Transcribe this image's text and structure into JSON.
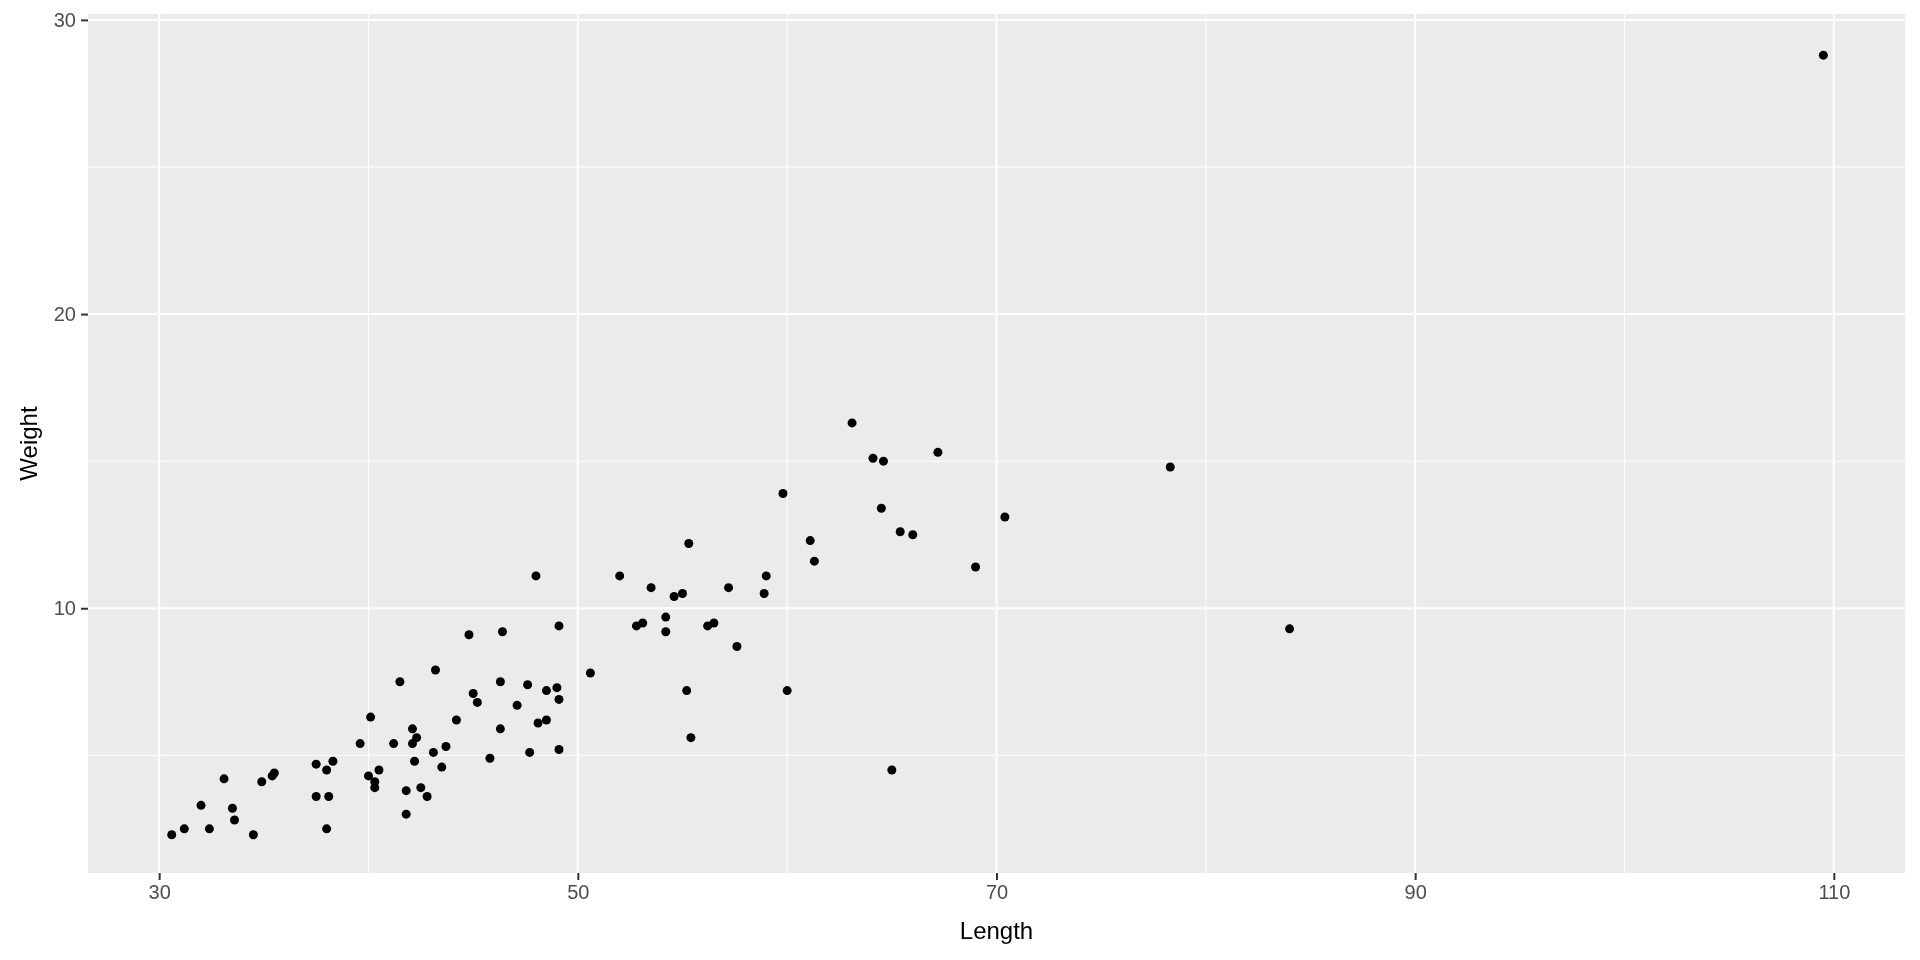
{
  "chart_data": {
    "type": "scatter",
    "xlabel": "Length",
    "ylabel": "Weight",
    "x": [
      48.0,
      49.1,
      44.8,
      46.4,
      43.2,
      41.5,
      50.6,
      46.3,
      47.6,
      48.5,
      49.0,
      45.0,
      45.2,
      49.1,
      47.1,
      40.1,
      44.2,
      42.1,
      46.3,
      48.1,
      48.5,
      42.3,
      42.1,
      39.6,
      41.2,
      43.7,
      43.1,
      47.7,
      49.1,
      45.8,
      42.2,
      43.5,
      40.5,
      40.0,
      40.3,
      40.3,
      41.8,
      42.5,
      42.8,
      41.8,
      37.5,
      38.0,
      38.3,
      37.5,
      38.1,
      38.0,
      33.1,
      34.9,
      35.4,
      35.5,
      32.0,
      33.5,
      33.6,
      30.6,
      31.2,
      32.4,
      34.5,
      63.1,
      64.1,
      64.6,
      67.2,
      59.8,
      64.5,
      70.4,
      65.4,
      66.0,
      61.1,
      61.3,
      69.0,
      55.3,
      52.0,
      53.5,
      54.6,
      55.0,
      57.2,
      59.0,
      58.9,
      52.8,
      53.1,
      54.2,
      54.2,
      56.2,
      56.5,
      57.6,
      55.2,
      60.0,
      55.4,
      65.0,
      109.5,
      78.3,
      84.0
    ],
    "values": [
      11.1,
      9.4,
      9.1,
      9.2,
      7.9,
      7.5,
      7.8,
      7.5,
      7.4,
      7.2,
      7.3,
      7.1,
      6.8,
      6.9,
      6.7,
      6.3,
      6.2,
      5.9,
      5.9,
      6.1,
      6.2,
      5.6,
      5.4,
      5.4,
      5.4,
      5.3,
      5.1,
      5.1,
      5.2,
      4.9,
      4.8,
      4.6,
      4.5,
      4.3,
      4.1,
      3.9,
      3.8,
      3.9,
      3.6,
      3.0,
      4.7,
      4.5,
      4.8,
      3.6,
      3.6,
      2.5,
      4.2,
      4.1,
      4.3,
      4.4,
      3.3,
      3.2,
      2.8,
      2.3,
      2.5,
      2.5,
      2.3,
      16.3,
      15.1,
      15.0,
      15.3,
      13.9,
      13.4,
      13.1,
      12.6,
      12.5,
      12.3,
      11.6,
      11.4,
      12.2,
      11.1,
      10.7,
      10.4,
      10.5,
      10.7,
      11.1,
      10.5,
      9.4,
      9.5,
      9.7,
      9.2,
      9.4,
      9.5,
      8.7,
      7.2,
      7.2,
      5.6,
      4.5,
      28.8,
      14.8,
      9.3
    ],
    "color": "#000000",
    "marker": "circle",
    "xlim": [
      26.6,
      113.4
    ],
    "ylim": [
      1.0,
      30.2
    ],
    "xticks": [
      30,
      {
        "value": 40,
        "label": null
      },
      50,
      {
        "value": 60,
        "label": null
      },
      70,
      {
        "value": 80,
        "label": null
      },
      90,
      {
        "value": 100,
        "label": null
      },
      110
    ],
    "yticks": [
      {
        "value": 5,
        "label": null
      },
      10,
      {
        "value": 15,
        "label": null
      },
      20,
      {
        "value": 25,
        "label": null
      },
      30
    ],
    "grid": true
  }
}
